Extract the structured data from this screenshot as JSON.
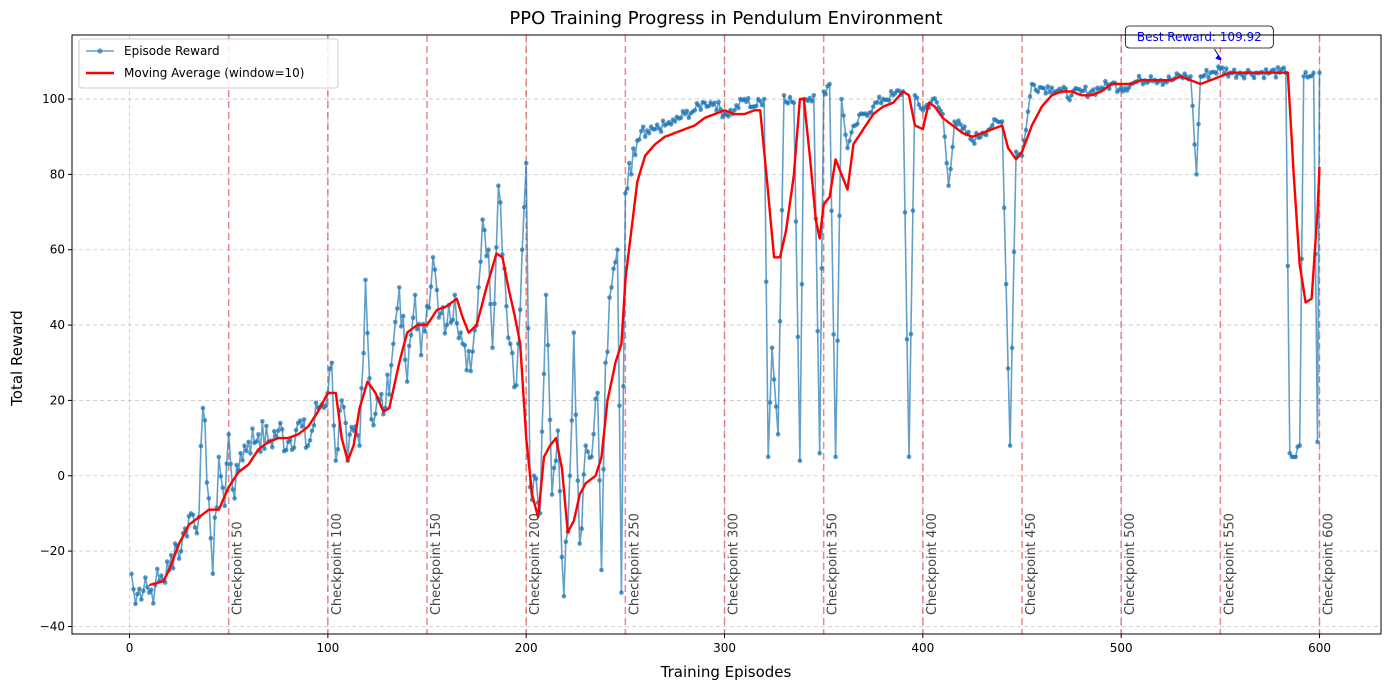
{
  "chart_data": {
    "type": "line",
    "title": "PPO Training Progress in Pendulum Environment",
    "xlabel": "Training Episodes",
    "ylabel": "Total Reward",
    "xlim": [
      -29,
      631
    ],
    "ylim": [
      -42,
      117
    ],
    "xticks": [
      0,
      100,
      200,
      300,
      400,
      500,
      600
    ],
    "yticks": [
      -40,
      -20,
      0,
      20,
      40,
      60,
      80,
      100
    ],
    "grid": true,
    "legend_position": "upper-left",
    "series": [
      {
        "name": "Episode Reward",
        "color": "#1f77b4",
        "marker": "circle",
        "anchors": [
          [
            1,
            -26
          ],
          [
            3,
            -34
          ],
          [
            5,
            -30
          ],
          [
            8,
            -27
          ],
          [
            10,
            -31
          ],
          [
            13,
            -29
          ],
          [
            15,
            -28
          ],
          [
            20,
            -25
          ],
          [
            23,
            -18
          ],
          [
            26,
            -20
          ],
          [
            28,
            -14
          ],
          [
            31,
            -10
          ],
          [
            35,
            -11
          ],
          [
            37,
            18
          ],
          [
            40,
            -6
          ],
          [
            42,
            -26
          ],
          [
            45,
            5
          ],
          [
            48,
            -8
          ],
          [
            50,
            11
          ],
          [
            53,
            -6
          ],
          [
            56,
            6
          ],
          [
            60,
            9
          ],
          [
            65,
            11
          ],
          [
            70,
            9
          ],
          [
            75,
            12
          ],
          [
            80,
            9
          ],
          [
            85,
            14
          ],
          [
            90,
            8
          ],
          [
            95,
            18
          ],
          [
            100,
            22
          ],
          [
            102,
            30
          ],
          [
            104,
            4
          ],
          [
            107,
            20
          ],
          [
            110,
            4
          ],
          [
            113,
            12
          ],
          [
            116,
            8
          ],
          [
            119,
            52
          ],
          [
            122,
            15
          ],
          [
            126,
            20
          ],
          [
            129,
            18
          ],
          [
            133,
            35
          ],
          [
            136,
            50
          ],
          [
            140,
            25
          ],
          [
            144,
            48
          ],
          [
            147,
            32
          ],
          [
            150,
            45
          ],
          [
            153,
            58
          ],
          [
            156,
            42
          ],
          [
            160,
            40
          ],
          [
            164,
            48
          ],
          [
            167,
            38
          ],
          [
            170,
            28
          ],
          [
            173,
            33
          ],
          [
            176,
            50
          ],
          [
            178,
            68
          ],
          [
            181,
            60
          ],
          [
            183,
            34
          ],
          [
            186,
            77
          ],
          [
            189,
            55
          ],
          [
            192,
            35
          ],
          [
            195,
            24
          ],
          [
            198,
            60
          ],
          [
            200,
            83
          ],
          [
            202,
            -3
          ],
          [
            204,
            0
          ],
          [
            207,
            -10
          ],
          [
            210,
            48
          ],
          [
            213,
            -5
          ],
          [
            216,
            12
          ],
          [
            219,
            -32
          ],
          [
            222,
            0
          ],
          [
            224,
            38
          ],
          [
            227,
            -18
          ],
          [
            230,
            8
          ],
          [
            233,
            5
          ],
          [
            236,
            22
          ],
          [
            238,
            -25
          ],
          [
            240,
            30
          ],
          [
            243,
            50
          ],
          [
            246,
            60
          ],
          [
            248,
            -31
          ],
          [
            250,
            75
          ],
          [
            253,
            80
          ],
          [
            256,
            89
          ],
          [
            260,
            90
          ],
          [
            265,
            92
          ],
          [
            270,
            93
          ],
          [
            275,
            94
          ],
          [
            280,
            96
          ],
          [
            285,
            97
          ],
          [
            290,
            99
          ],
          [
            295,
            99
          ],
          [
            300,
            96
          ],
          [
            305,
            97
          ],
          [
            310,
            100
          ],
          [
            315,
            98
          ],
          [
            320,
            100
          ],
          [
            322,
            5
          ],
          [
            324,
            34
          ],
          [
            327,
            11
          ],
          [
            330,
            101
          ],
          [
            335,
            99
          ],
          [
            338,
            4
          ],
          [
            340,
            100
          ],
          [
            345,
            101
          ],
          [
            348,
            6
          ],
          [
            350,
            102
          ],
          [
            353,
            104
          ],
          [
            356,
            5
          ],
          [
            359,
            100
          ],
          [
            362,
            87
          ],
          [
            366,
            93
          ],
          [
            370,
            96
          ],
          [
            375,
            98
          ],
          [
            380,
            100
          ],
          [
            385,
            101
          ],
          [
            390,
            102
          ],
          [
            393,
            5
          ],
          [
            396,
            101
          ],
          [
            400,
            97
          ],
          [
            405,
            100
          ],
          [
            410,
            96
          ],
          [
            413,
            77
          ],
          [
            416,
            94
          ],
          [
            420,
            92
          ],
          [
            425,
            89
          ],
          [
            430,
            91
          ],
          [
            435,
            93
          ],
          [
            440,
            94
          ],
          [
            444,
            8
          ],
          [
            447,
            86
          ],
          [
            450,
            85
          ],
          [
            455,
            104
          ],
          [
            460,
            103
          ],
          [
            465,
            103
          ],
          [
            470,
            102
          ],
          [
            475,
            101
          ],
          [
            480,
            102
          ],
          [
            485,
            102
          ],
          [
            490,
            103
          ],
          [
            495,
            104
          ],
          [
            500,
            103
          ],
          [
            505,
            104
          ],
          [
            510,
            105
          ],
          [
            515,
            106
          ],
          [
            520,
            105
          ],
          [
            525,
            105
          ],
          [
            530,
            106
          ],
          [
            535,
            106
          ],
          [
            538,
            80
          ],
          [
            540,
            106
          ],
          [
            545,
            107
          ],
          [
            550,
            108
          ],
          [
            555,
            107
          ],
          [
            560,
            107
          ],
          [
            565,
            107
          ],
          [
            570,
            107
          ],
          [
            575,
            107
          ],
          [
            580,
            107
          ],
          [
            583,
            107
          ],
          [
            585,
            6
          ],
          [
            588,
            5
          ],
          [
            590,
            8
          ],
          [
            592,
            106
          ],
          [
            595,
            106
          ],
          [
            597,
            107
          ],
          [
            599,
            9
          ],
          [
            600,
            107
          ]
        ]
      },
      {
        "name": "Moving Average (window=10)",
        "color": "#ff0000",
        "anchors": [
          [
            10,
            -29
          ],
          [
            17,
            -28
          ],
          [
            20,
            -25
          ],
          [
            25,
            -18
          ],
          [
            30,
            -13
          ],
          [
            35,
            -11
          ],
          [
            40,
            -9
          ],
          [
            45,
            -9
          ],
          [
            50,
            -3
          ],
          [
            55,
            1
          ],
          [
            60,
            3
          ],
          [
            65,
            7
          ],
          [
            70,
            9
          ],
          [
            75,
            10
          ],
          [
            80,
            10
          ],
          [
            85,
            11
          ],
          [
            90,
            13
          ],
          [
            95,
            17
          ],
          [
            100,
            22
          ],
          [
            104,
            22
          ],
          [
            107,
            10
          ],
          [
            110,
            4
          ],
          [
            113,
            8
          ],
          [
            116,
            18
          ],
          [
            120,
            25
          ],
          [
            124,
            22
          ],
          [
            128,
            17
          ],
          [
            131,
            18
          ],
          [
            136,
            30
          ],
          [
            140,
            38
          ],
          [
            145,
            40
          ],
          [
            150,
            40
          ],
          [
            155,
            44
          ],
          [
            160,
            45
          ],
          [
            165,
            47
          ],
          [
            168,
            42
          ],
          [
            171,
            38
          ],
          [
            175,
            40
          ],
          [
            180,
            50
          ],
          [
            185,
            59
          ],
          [
            188,
            58
          ],
          [
            191,
            50
          ],
          [
            194,
            43
          ],
          [
            197,
            35
          ],
          [
            200,
            10
          ],
          [
            203,
            -5
          ],
          [
            206,
            -11
          ],
          [
            209,
            5
          ],
          [
            212,
            8
          ],
          [
            215,
            10
          ],
          [
            218,
            2
          ],
          [
            221,
            -15
          ],
          [
            224,
            -12
          ],
          [
            227,
            -5
          ],
          [
            230,
            -2
          ],
          [
            235,
            0
          ],
          [
            238,
            5
          ],
          [
            241,
            20
          ],
          [
            245,
            30
          ],
          [
            248,
            35
          ],
          [
            250,
            52
          ],
          [
            253,
            65
          ],
          [
            256,
            78
          ],
          [
            260,
            85
          ],
          [
            265,
            88
          ],
          [
            270,
            90
          ],
          [
            275,
            91
          ],
          [
            280,
            92
          ],
          [
            285,
            93
          ],
          [
            290,
            95
          ],
          [
            295,
            96
          ],
          [
            300,
            97
          ],
          [
            305,
            96
          ],
          [
            310,
            96
          ],
          [
            315,
            97
          ],
          [
            318,
            97
          ],
          [
            322,
            75
          ],
          [
            325,
            58
          ],
          [
            328,
            58
          ],
          [
            331,
            65
          ],
          [
            335,
            80
          ],
          [
            338,
            100
          ],
          [
            340,
            100
          ],
          [
            343,
            85
          ],
          [
            346,
            68
          ],
          [
            348,
            63
          ],
          [
            350,
            72
          ],
          [
            353,
            74
          ],
          [
            356,
            84
          ],
          [
            359,
            80
          ],
          [
            362,
            76
          ],
          [
            365,
            88
          ],
          [
            370,
            92
          ],
          [
            375,
            96
          ],
          [
            380,
            98
          ],
          [
            385,
            99
          ],
          [
            390,
            102
          ],
          [
            393,
            101
          ],
          [
            396,
            93
          ],
          [
            400,
            92
          ],
          [
            403,
            99
          ],
          [
            406,
            98
          ],
          [
            410,
            95
          ],
          [
            415,
            93
          ],
          [
            420,
            91
          ],
          [
            425,
            90
          ],
          [
            430,
            91
          ],
          [
            435,
            92
          ],
          [
            440,
            93
          ],
          [
            443,
            87
          ],
          [
            447,
            84
          ],
          [
            450,
            86
          ],
          [
            455,
            93
          ],
          [
            460,
            98
          ],
          [
            465,
            101
          ],
          [
            470,
            102
          ],
          [
            475,
            102
          ],
          [
            480,
            101
          ],
          [
            485,
            101
          ],
          [
            490,
            102
          ],
          [
            495,
            104
          ],
          [
            500,
            104
          ],
          [
            505,
            104
          ],
          [
            510,
            105
          ],
          [
            515,
            105
          ],
          [
            520,
            105
          ],
          [
            525,
            105
          ],
          [
            530,
            106
          ],
          [
            535,
            105
          ],
          [
            540,
            104
          ],
          [
            545,
            105
          ],
          [
            550,
            106
          ],
          [
            555,
            107
          ],
          [
            560,
            107
          ],
          [
            565,
            107
          ],
          [
            570,
            107
          ],
          [
            575,
            107
          ],
          [
            580,
            107
          ],
          [
            584,
            107
          ],
          [
            587,
            80
          ],
          [
            590,
            56
          ],
          [
            593,
            46
          ],
          [
            596,
            47
          ],
          [
            599,
            70
          ],
          [
            600,
            82
          ]
        ]
      }
    ],
    "checkpoints": {
      "x": [
        50,
        100,
        150,
        200,
        250,
        300,
        350,
        400,
        450,
        500,
        550,
        600
      ],
      "labels": [
        "Checkpoint 50",
        "Checkpoint 100",
        "Checkpoint 150",
        "Checkpoint 200",
        "Checkpoint 250",
        "Checkpoint 300",
        "Checkpoint 350",
        "Checkpoint 400",
        "Checkpoint 450",
        "Checkpoint 500",
        "Checkpoint 550",
        "Checkpoint 600"
      ],
      "color": "#d62728"
    },
    "annotation": {
      "text": "Best Reward: 109.92",
      "point": [
        551,
        109.92
      ],
      "color": "#0000ff"
    }
  }
}
